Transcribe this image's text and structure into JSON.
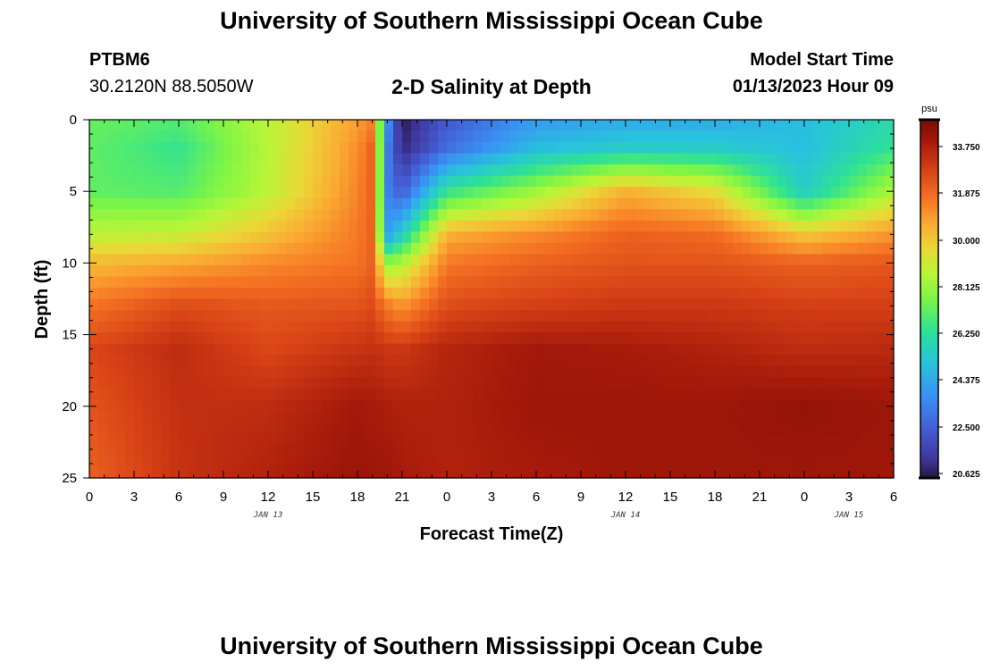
{
  "page": {
    "title_top": "University of Southern Mississippi Ocean Cube",
    "title_bottom": "University of Southern Mississippi Ocean Cube",
    "station_id": "PTBM6",
    "station_coords": "30.2120N  88.5050W",
    "plot_title": "2-D Salinity at Depth",
    "model_start_label": "Model Start Time",
    "model_start_value": "01/13/2023 Hour 09"
  },
  "chart_data": {
    "type": "heatmap",
    "title": "2-D Salinity at Depth",
    "xlabel": "Forecast Time(Z)",
    "ylabel": "Depth (ft)",
    "x_ticks": [
      "0",
      "3",
      "6",
      "9",
      "12",
      "15",
      "18",
      "21",
      "0",
      "3",
      "6",
      "9",
      "12",
      "15",
      "18",
      "21",
      "0",
      "3",
      "6"
    ],
    "date_labels": [
      {
        "label": "JAN 13",
        "at_tick": 4
      },
      {
        "label": "JAN 14",
        "at_tick": 12
      },
      {
        "label": "JAN 15",
        "at_tick": 17
      }
    ],
    "y_ticks": [
      0,
      5,
      10,
      15,
      20,
      25
    ],
    "ylim": [
      25,
      0
    ],
    "colorbar": {
      "unit": "psu",
      "ticks": [
        "33.750",
        "31.875",
        "30.000",
        "28.125",
        "26.250",
        "24.375",
        "22.500",
        "20.625"
      ],
      "min": 20.625,
      "max": 34.7
    },
    "salinity_anchor_grid": {
      "times_hours": [
        0,
        6,
        12,
        18,
        19,
        20,
        21,
        24,
        30,
        36,
        42,
        48,
        54
      ],
      "depths_ft": [
        0,
        2,
        5,
        8,
        10,
        13,
        16,
        20,
        25
      ],
      "values_psu": [
        [
          27.3,
          27.0,
          28.7,
          30.8,
          31.3,
          24.0,
          20.7,
          22.4,
          24.1,
          24.5,
          24.5,
          25.0,
          26.0
        ],
        [
          27.2,
          26.5,
          28.6,
          31.1,
          32.0,
          23.5,
          21.0,
          23.0,
          25.0,
          25.5,
          25.5,
          25.0,
          26.5
        ],
        [
          27.2,
          27.0,
          28.7,
          31.3,
          32.0,
          23.5,
          22.5,
          26.5,
          28.2,
          30.5,
          29.5,
          25.5,
          28.5
        ],
        [
          28.7,
          28.9,
          30.1,
          31.5,
          32.0,
          24.2,
          25.5,
          30.5,
          31.2,
          32.0,
          31.8,
          30.0,
          31.0
        ],
        [
          30.3,
          30.6,
          31.2,
          31.6,
          32.0,
          28.0,
          28.5,
          31.5,
          32.0,
          32.3,
          32.3,
          32.0,
          32.2
        ],
        [
          31.6,
          32.5,
          32.2,
          32.3,
          32.5,
          31.5,
          31.0,
          32.5,
          32.8,
          33.0,
          33.0,
          32.8,
          32.8
        ],
        [
          32.6,
          33.3,
          32.6,
          33.1,
          33.2,
          33.0,
          33.0,
          33.5,
          33.9,
          33.8,
          33.6,
          33.3,
          33.4
        ],
        [
          32.3,
          33.2,
          33.3,
          33.9,
          33.8,
          33.7,
          33.6,
          33.6,
          34.0,
          34.0,
          34.0,
          34.2,
          34.0
        ],
        [
          32.0,
          33.1,
          33.6,
          34.1,
          34.0,
          34.0,
          33.8,
          33.6,
          33.8,
          34.0,
          34.0,
          34.0,
          34.0
        ]
      ]
    }
  }
}
